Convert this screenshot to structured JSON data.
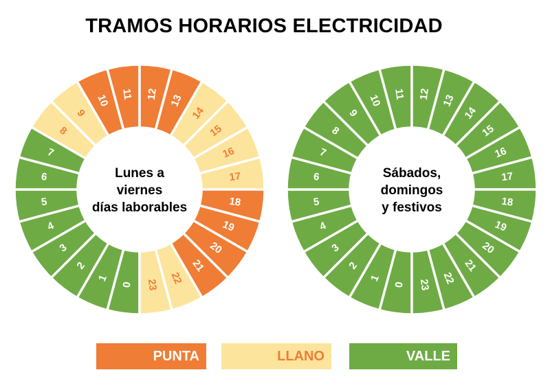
{
  "title": "TRAMOS HORARIOS ELECTRICIDAD",
  "colors": {
    "punta": "#EF7D35",
    "llano": "#FDE49C",
    "valle": "#6EAB45",
    "llano_text": "#EF7D35",
    "text_light": "#FFFFFF"
  },
  "clocks": [
    {
      "label_lines": [
        "Lunes a",
        "viernes",
        "días laborables"
      ],
      "hours": [
        {
          "hour": "0",
          "tramo": "valle"
        },
        {
          "hour": "1",
          "tramo": "valle"
        },
        {
          "hour": "2",
          "tramo": "valle"
        },
        {
          "hour": "3",
          "tramo": "valle"
        },
        {
          "hour": "4",
          "tramo": "valle"
        },
        {
          "hour": "5",
          "tramo": "valle"
        },
        {
          "hour": "6",
          "tramo": "valle"
        },
        {
          "hour": "7",
          "tramo": "valle"
        },
        {
          "hour": "8",
          "tramo": "llano"
        },
        {
          "hour": "9",
          "tramo": "llano"
        },
        {
          "hour": "10",
          "tramo": "punta"
        },
        {
          "hour": "11",
          "tramo": "punta"
        },
        {
          "hour": "12",
          "tramo": "punta"
        },
        {
          "hour": "13",
          "tramo": "punta"
        },
        {
          "hour": "14",
          "tramo": "llano"
        },
        {
          "hour": "15",
          "tramo": "llano"
        },
        {
          "hour": "16",
          "tramo": "llano"
        },
        {
          "hour": "17",
          "tramo": "llano"
        },
        {
          "hour": "18",
          "tramo": "punta"
        },
        {
          "hour": "19",
          "tramo": "punta"
        },
        {
          "hour": "20",
          "tramo": "punta"
        },
        {
          "hour": "21",
          "tramo": "punta"
        },
        {
          "hour": "22",
          "tramo": "llano"
        },
        {
          "hour": "23",
          "tramo": "llano"
        }
      ]
    },
    {
      "label_lines": [
        "Sábados,",
        "domingos",
        "y festivos"
      ],
      "hours": [
        {
          "hour": "0",
          "tramo": "valle"
        },
        {
          "hour": "1",
          "tramo": "valle"
        },
        {
          "hour": "2",
          "tramo": "valle"
        },
        {
          "hour": "3",
          "tramo": "valle"
        },
        {
          "hour": "4",
          "tramo": "valle"
        },
        {
          "hour": "5",
          "tramo": "valle"
        },
        {
          "hour": "6",
          "tramo": "valle"
        },
        {
          "hour": "7",
          "tramo": "valle"
        },
        {
          "hour": "8",
          "tramo": "valle"
        },
        {
          "hour": "9",
          "tramo": "valle"
        },
        {
          "hour": "10",
          "tramo": "valle"
        },
        {
          "hour": "11",
          "tramo": "valle"
        },
        {
          "hour": "12",
          "tramo": "valle"
        },
        {
          "hour": "13",
          "tramo": "valle"
        },
        {
          "hour": "14",
          "tramo": "valle"
        },
        {
          "hour": "15",
          "tramo": "valle"
        },
        {
          "hour": "16",
          "tramo": "valle"
        },
        {
          "hour": "17",
          "tramo": "valle"
        },
        {
          "hour": "18",
          "tramo": "valle"
        },
        {
          "hour": "19",
          "tramo": "valle"
        },
        {
          "hour": "20",
          "tramo": "valle"
        },
        {
          "hour": "21",
          "tramo": "valle"
        },
        {
          "hour": "22",
          "tramo": "valle"
        },
        {
          "hour": "23",
          "tramo": "valle"
        }
      ]
    }
  ],
  "legend": {
    "punta": "PUNTA",
    "llano": "LLANO",
    "valle": "VALLE"
  }
}
